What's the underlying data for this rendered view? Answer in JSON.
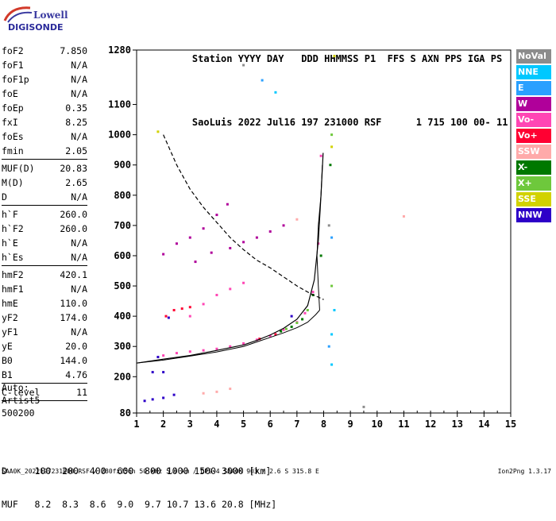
{
  "logo": {
    "line1": "Lowell",
    "line2": "DIGISONDE"
  },
  "header": {
    "row1": [
      "Station",
      "YYYY DAY",
      "DDD",
      "HHMMSS",
      "P1",
      "FFS",
      "S",
      "AXN",
      "PPS",
      "IGA",
      "PS"
    ],
    "row2": [
      "SaoLuis",
      "2022 Jul16",
      "197",
      "231000",
      "RSF",
      "",
      "1",
      "715",
      "100",
      "00-",
      "11"
    ]
  },
  "params": {
    "group1": [
      {
        "name": "foF2",
        "value": "7.850"
      },
      {
        "name": "foF1",
        "value": "N/A"
      },
      {
        "name": "foF1p",
        "value": "N/A"
      },
      {
        "name": "foE",
        "value": "N/A"
      },
      {
        "name": "foEp",
        "value": "0.35"
      },
      {
        "name": "fxI",
        "value": "8.25"
      },
      {
        "name": "foEs",
        "value": "N/A"
      },
      {
        "name": "fmin",
        "value": "2.05"
      }
    ],
    "group2": [
      {
        "name": "MUF(D)",
        "value": "20.83"
      },
      {
        "name": "M(D)",
        "value": "2.65"
      },
      {
        "name": "D",
        "value": "N/A"
      }
    ],
    "group3": [
      {
        "name": "h`F",
        "value": "260.0"
      },
      {
        "name": "h`F2",
        "value": "260.0"
      },
      {
        "name": "h`E",
        "value": "N/A"
      },
      {
        "name": "h`Es",
        "value": "N/A"
      }
    ],
    "group4": [
      {
        "name": "hmF2",
        "value": "420.1"
      },
      {
        "name": "hmF1",
        "value": "N/A"
      },
      {
        "name": "hmE",
        "value": "110.0"
      },
      {
        "name": "yF2",
        "value": "174.0"
      },
      {
        "name": "yF1",
        "value": "N/A"
      },
      {
        "name": "yE",
        "value": "20.0"
      },
      {
        "name": "B0",
        "value": "144.0"
      },
      {
        "name": "B1",
        "value": "4.76"
      }
    ],
    "group5": [
      {
        "name": "C-level",
        "value": "11"
      }
    ]
  },
  "auto": {
    "line1": "Auto:",
    "line2": "Artist5",
    "line3": "500200"
  },
  "legend": [
    {
      "label": "NoVal",
      "color": "#8c8c8c"
    },
    {
      "label": "NNE",
      "color": "#00c8ff"
    },
    {
      "label": "E",
      "color": "#2aa0ff"
    },
    {
      "label": "W",
      "color": "#b0009a"
    },
    {
      "label": "Vo-",
      "color": "#ff46b4"
    },
    {
      "label": "Vo+",
      "color": "#ff0032"
    },
    {
      "label": "SSW",
      "color": "#ffaaaa"
    },
    {
      "label": "X-",
      "color": "#007800"
    },
    {
      "label": "X+",
      "color": "#6ec83c"
    },
    {
      "label": "SSE",
      "color": "#d2d200"
    },
    {
      "label": "NNW",
      "color": "#2d00c8"
    }
  ],
  "bottom": {
    "row1": "D     100  200  400  600  800 1000 1500 3000 [km]",
    "row2": "MUF   8.2  8.3  8.6  9.0  9.7 10.7 13.6 20.8 [MHz]"
  },
  "footer": "SAA0K_2022197231000.RSF / 280fx256h 50 kHz 5.0 km / DPS-4 SAA0K 903 / 2.6 S 315.8 E",
  "version": "Ion2Png 1.3.17",
  "chart_data": {
    "type": "scatter",
    "x_ticks": [
      1,
      2,
      3,
      4,
      5,
      6,
      7,
      8,
      9,
      10,
      11,
      12,
      13,
      14,
      15
    ],
    "y_ticks": [
      80,
      200,
      300,
      400,
      500,
      600,
      700,
      800,
      900,
      1000,
      1100,
      1280
    ],
    "xlim": [
      1,
      15
    ],
    "ylim": [
      80,
      1280
    ],
    "grid": false,
    "legend_position": "right",
    "series": [
      {
        "name": "W",
        "color": "#b0009a",
        "points": [
          [
            2.0,
            605
          ],
          [
            2.5,
            640
          ],
          [
            3.0,
            660
          ],
          [
            3.5,
            690
          ],
          [
            4.0,
            735
          ],
          [
            4.4,
            770
          ],
          [
            3.2,
            580
          ],
          [
            3.8,
            610
          ],
          [
            4.5,
            625
          ],
          [
            5.0,
            645
          ],
          [
            5.5,
            660
          ],
          [
            6.0,
            680
          ],
          [
            6.5,
            700
          ]
        ]
      },
      {
        "name": "Vo-",
        "color": "#ff46b4",
        "points": [
          [
            2.0,
            270
          ],
          [
            2.5,
            278
          ],
          [
            3.0,
            283
          ],
          [
            3.5,
            287
          ],
          [
            4.0,
            292
          ],
          [
            4.5,
            300
          ],
          [
            5.0,
            310
          ],
          [
            5.5,
            322
          ],
          [
            6.0,
            335
          ],
          [
            6.5,
            355
          ],
          [
            7.0,
            380
          ],
          [
            7.3,
            410
          ],
          [
            7.6,
            480
          ],
          [
            7.8,
            640
          ],
          [
            7.9,
            930
          ],
          [
            3.0,
            400
          ],
          [
            3.5,
            440
          ],
          [
            4.0,
            470
          ],
          [
            4.5,
            490
          ],
          [
            5.0,
            510
          ]
        ]
      },
      {
        "name": "Vo+",
        "color": "#ff0032",
        "points": [
          [
            2.1,
            400
          ],
          [
            2.4,
            420
          ],
          [
            2.7,
            425
          ],
          [
            3.0,
            430
          ],
          [
            5.6,
            325
          ],
          [
            6.2,
            340
          ]
        ]
      },
      {
        "name": "X-",
        "color": "#007800",
        "points": [
          [
            6.4,
            350
          ],
          [
            6.8,
            365
          ],
          [
            7.2,
            390
          ],
          [
            7.6,
            470
          ],
          [
            7.9,
            600
          ],
          [
            8.25,
            900
          ]
        ]
      },
      {
        "name": "X+",
        "color": "#6ec83c",
        "points": [
          [
            6.6,
            358
          ],
          [
            7.0,
            378
          ],
          [
            7.4,
            420
          ],
          [
            8.3,
            500
          ],
          [
            8.3,
            1000
          ]
        ]
      },
      {
        "name": "NNW",
        "color": "#2d00c8",
        "points": [
          [
            1.3,
            120
          ],
          [
            1.6,
            125
          ],
          [
            2.0,
            130
          ],
          [
            2.4,
            140
          ],
          [
            2.0,
            215
          ],
          [
            1.6,
            215
          ],
          [
            1.8,
            265
          ],
          [
            2.2,
            395
          ],
          [
            6.8,
            400
          ]
        ]
      },
      {
        "name": "NNE",
        "color": "#00c8ff",
        "points": [
          [
            8.3,
            240
          ],
          [
            8.3,
            340
          ],
          [
            8.4,
            420
          ],
          [
            6.2,
            1140
          ]
        ]
      },
      {
        "name": "E",
        "color": "#2aa0ff",
        "points": [
          [
            8.2,
            300
          ],
          [
            8.3,
            660
          ],
          [
            5.7,
            1180
          ]
        ]
      },
      {
        "name": "SSW",
        "color": "#ffaaaa",
        "points": [
          [
            3.5,
            145
          ],
          [
            4.0,
            150
          ],
          [
            4.5,
            160
          ],
          [
            7.0,
            720
          ],
          [
            11.0,
            730
          ]
        ]
      },
      {
        "name": "SSE",
        "color": "#d2d200",
        "points": [
          [
            8.3,
            960
          ],
          [
            8.4,
            1260
          ],
          [
            1.8,
            1010
          ]
        ]
      },
      {
        "name": "NoVal",
        "color": "#8c8c8c",
        "points": [
          [
            5.0,
            1230
          ],
          [
            8.2,
            700
          ],
          [
            9.5,
            100
          ]
        ]
      }
    ],
    "profile": [
      [
        1.0,
        245
      ],
      [
        2.0,
        255
      ],
      [
        3.0,
        268
      ],
      [
        4.0,
        282
      ],
      [
        5.0,
        300
      ],
      [
        5.5,
        315
      ],
      [
        6.0,
        330
      ],
      [
        6.5,
        345
      ],
      [
        7.0,
        362
      ],
      [
        7.4,
        380
      ],
      [
        7.7,
        405
      ],
      [
        7.85,
        420
      ]
    ],
    "profile_upper": [
      [
        7.85,
        420
      ],
      [
        7.8,
        500
      ],
      [
        7.75,
        600
      ],
      [
        7.8,
        700
      ],
      [
        7.9,
        800
      ],
      [
        7.95,
        900
      ]
    ],
    "virtual_trace": [
      [
        1.0,
        245
      ],
      [
        2.0,
        258
      ],
      [
        3.0,
        270
      ],
      [
        4.0,
        287
      ],
      [
        5.0,
        305
      ],
      [
        5.5,
        320
      ],
      [
        6.0,
        338
      ],
      [
        6.5,
        360
      ],
      [
        7.0,
        390
      ],
      [
        7.4,
        435
      ],
      [
        7.65,
        520
      ],
      [
        7.8,
        650
      ],
      [
        7.9,
        800
      ],
      [
        7.98,
        940
      ]
    ],
    "muf_curve": [
      [
        2.0,
        1000
      ],
      [
        2.5,
        900
      ],
      [
        3.0,
        820
      ],
      [
        3.5,
        760
      ],
      [
        4.0,
        710
      ],
      [
        4.5,
        660
      ],
      [
        5.0,
        620
      ],
      [
        5.5,
        585
      ],
      [
        6.0,
        560
      ],
      [
        6.5,
        530
      ],
      [
        7.0,
        500
      ],
      [
        7.5,
        475
      ],
      [
        8.0,
        455
      ]
    ]
  }
}
